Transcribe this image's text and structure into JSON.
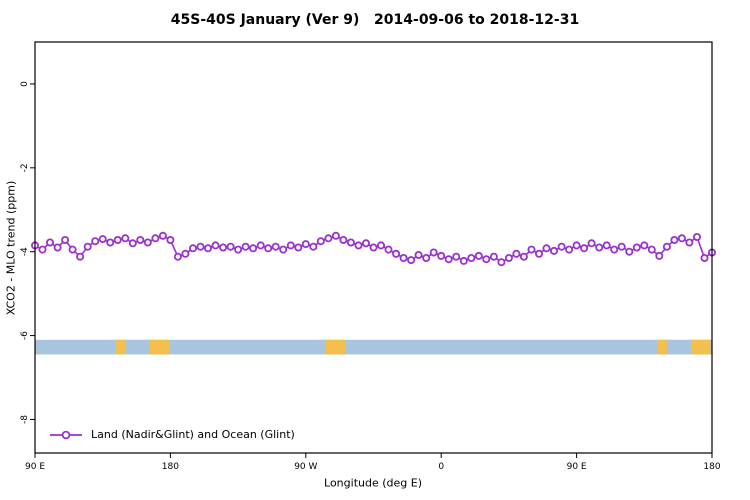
{
  "chart_data": {
    "type": "line",
    "title": "45S-40S January (Ver 9)   2014-09-06 to 2018-12-31",
    "xlabel": "Longitude (deg E)",
    "ylabel": "XCO2 - MLO trend (ppm)",
    "legend_label": "Land (Nadir&Glint) and Ocean (Glint)",
    "series_color": "#9932CC",
    "grid": false,
    "legend_position": "bottom-left-inside",
    "xlim": [
      90,
      540
    ],
    "ylim": [
      -8.8,
      1.0
    ],
    "x_ticks": [
      {
        "value": 90,
        "label": "90 E"
      },
      {
        "value": 180,
        "label": "180"
      },
      {
        "value": 270,
        "label": "90 W"
      },
      {
        "value": 360,
        "label": "0"
      },
      {
        "value": 450,
        "label": "90 E"
      },
      {
        "value": 540,
        "label": "180"
      }
    ],
    "y_ticks": [
      {
        "value": 0,
        "label": "0"
      },
      {
        "value": -2,
        "label": "-2"
      },
      {
        "value": -4,
        "label": "-4"
      },
      {
        "value": -6,
        "label": "-6"
      },
      {
        "value": -8,
        "label": "-8"
      }
    ],
    "map_band": {
      "description": "latitude-band land/ocean strip",
      "ocean_color": "#A9C4DE",
      "land_color": "#F3C14B",
      "y_top": -6.1,
      "y_bottom": -6.45,
      "land_segments": [
        [
          144,
          150
        ],
        [
          166,
          179
        ],
        [
          283,
          296
        ],
        [
          504,
          510
        ],
        [
          526,
          539
        ]
      ]
    },
    "series": [
      {
        "name": "Land (Nadir&Glint) and Ocean (Glint)",
        "x": [
          90,
          95,
          100,
          105,
          110,
          115,
          120,
          125,
          130,
          135,
          140,
          145,
          150,
          155,
          160,
          165,
          170,
          175,
          180,
          185,
          190,
          195,
          200,
          205,
          210,
          215,
          220,
          225,
          230,
          235,
          240,
          245,
          250,
          255,
          260,
          265,
          270,
          275,
          280,
          285,
          290,
          295,
          300,
          305,
          310,
          315,
          320,
          325,
          330,
          335,
          340,
          345,
          350,
          355,
          360,
          365,
          370,
          375,
          380,
          385,
          390,
          395,
          400,
          405,
          410,
          415,
          420,
          425,
          430,
          435,
          440,
          445,
          450,
          455,
          460,
          465,
          470,
          475,
          480,
          485,
          490,
          495,
          500,
          505,
          510,
          515,
          520,
          525,
          530,
          535,
          540
        ],
        "y": [
          -3.85,
          -3.95,
          -3.78,
          -3.9,
          -3.72,
          -3.95,
          -4.12,
          -3.88,
          -3.75,
          -3.7,
          -3.78,
          -3.72,
          -3.68,
          -3.8,
          -3.72,
          -3.78,
          -3.68,
          -3.62,
          -3.72,
          -4.12,
          -4.05,
          -3.92,
          -3.88,
          -3.92,
          -3.85,
          -3.9,
          -3.88,
          -3.95,
          -3.88,
          -3.92,
          -3.85,
          -3.92,
          -3.88,
          -3.95,
          -3.85,
          -3.9,
          -3.82,
          -3.88,
          -3.75,
          -3.68,
          -3.62,
          -3.72,
          -3.78,
          -3.85,
          -3.8,
          -3.9,
          -3.85,
          -3.95,
          -4.05,
          -4.15,
          -4.2,
          -4.08,
          -4.15,
          -4.02,
          -4.1,
          -4.18,
          -4.12,
          -4.22,
          -4.15,
          -4.1,
          -4.18,
          -4.12,
          -4.25,
          -4.15,
          -4.05,
          -4.12,
          -3.95,
          -4.05,
          -3.92,
          -3.98,
          -3.88,
          -3.95,
          -3.85,
          -3.92,
          -3.8,
          -3.9,
          -3.85,
          -3.95,
          -3.88,
          -4.0,
          -3.9,
          -3.85,
          -3.95,
          -4.1,
          -3.88,
          -3.72,
          -3.68,
          -3.78,
          -3.65,
          -4.15,
          -4.02
        ]
      }
    ]
  }
}
